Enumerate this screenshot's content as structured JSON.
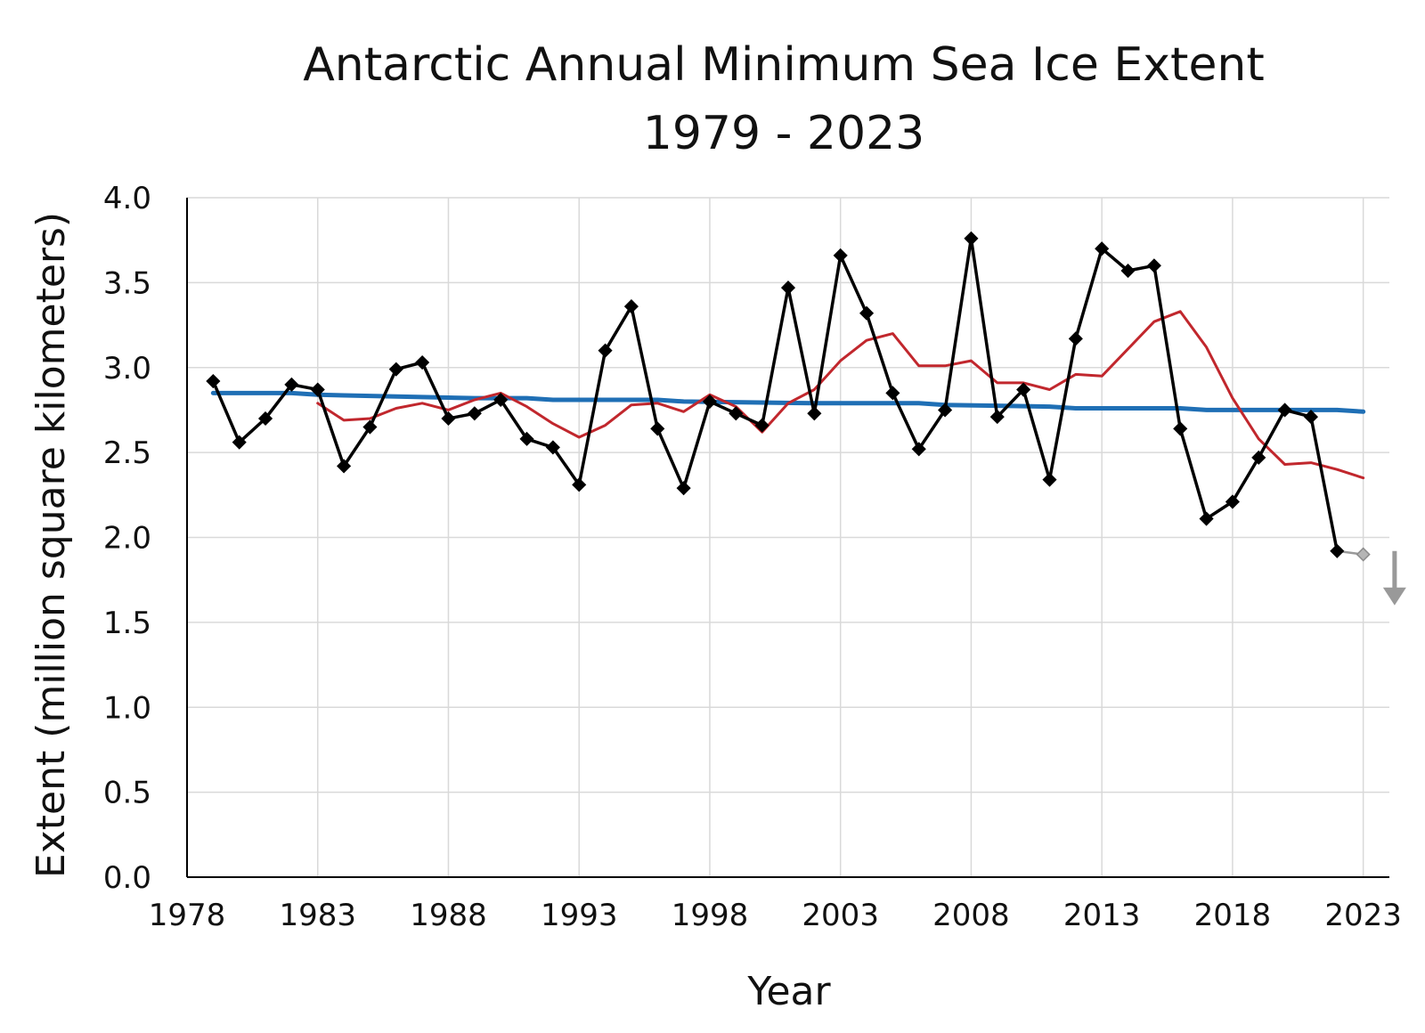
{
  "chart_data": {
    "type": "line",
    "title_line1": "Antarctic Annual Minimum Sea Ice Extent",
    "title_line2": "1979 - 2023",
    "xlabel": "Year",
    "ylabel": "Extent (million square kilometers)",
    "xlim": [
      1978,
      2024
    ],
    "ylim": [
      0,
      4.0
    ],
    "x_ticks": [
      1978,
      1983,
      1988,
      1993,
      1998,
      2003,
      2008,
      2013,
      2018,
      2023
    ],
    "y_ticks": [
      "0.0",
      "0.5",
      "1.0",
      "1.5",
      "2.0",
      "2.5",
      "3.0",
      "3.5",
      "4.0"
    ],
    "grid": true,
    "legend": "none",
    "series": [
      {
        "role": "annual-minimum",
        "color": "#000000",
        "marker": "diamond",
        "x": [
          1979,
          1980,
          1981,
          1982,
          1983,
          1984,
          1985,
          1986,
          1987,
          1988,
          1989,
          1990,
          1991,
          1992,
          1993,
          1994,
          1995,
          1996,
          1997,
          1998,
          1999,
          2000,
          2001,
          2002,
          2003,
          2004,
          2005,
          2006,
          2007,
          2008,
          2009,
          2010,
          2011,
          2012,
          2013,
          2014,
          2015,
          2016,
          2017,
          2018,
          2019,
          2020,
          2021,
          2022
        ],
        "values": [
          2.92,
          2.56,
          2.7,
          2.9,
          2.87,
          2.42,
          2.65,
          2.99,
          3.03,
          2.7,
          2.73,
          2.81,
          2.58,
          2.53,
          2.31,
          3.1,
          3.36,
          2.64,
          2.29,
          2.8,
          2.73,
          2.66,
          3.47,
          2.73,
          3.66,
          3.32,
          2.85,
          2.52,
          2.75,
          3.76,
          2.71,
          2.87,
          2.34,
          3.17,
          3.7,
          3.57,
          3.6,
          2.64,
          2.11,
          2.21,
          2.47,
          2.75,
          2.71,
          1.92
        ]
      },
      {
        "role": "preliminary-2023",
        "color": "#999999",
        "marker": "diamond",
        "x": [
          2022,
          2023
        ],
        "values": [
          1.92,
          1.9
        ]
      },
      {
        "role": "trend",
        "color": "#1f6fb5",
        "x": [
          1979,
          1982,
          1983,
          1989,
          1990,
          1991,
          1992,
          1993,
          1996,
          1997,
          2002,
          2006,
          2007,
          2011,
          2012,
          2016,
          2017,
          2022,
          2023
        ],
        "values": [
          2.85,
          2.85,
          2.84,
          2.82,
          2.82,
          2.82,
          2.81,
          2.81,
          2.81,
          2.8,
          2.79,
          2.79,
          2.78,
          2.77,
          2.76,
          2.76,
          2.75,
          2.75,
          2.74
        ]
      },
      {
        "role": "five-year-average",
        "color": "#c1272d",
        "x": [
          1983,
          1984,
          1985,
          1986,
          1987,
          1988,
          1989,
          1990,
          1991,
          1992,
          1993,
          1994,
          1995,
          1996,
          1997,
          1998,
          1999,
          2000,
          2001,
          2002,
          2003,
          2004,
          2005,
          2006,
          2007,
          2008,
          2009,
          2010,
          2011,
          2012,
          2013,
          2014,
          2015,
          2016,
          2017,
          2018,
          2019,
          2020,
          2021,
          2022,
          2023
        ],
        "values": [
          2.79,
          2.69,
          2.7,
          2.76,
          2.79,
          2.75,
          2.81,
          2.85,
          2.77,
          2.67,
          2.59,
          2.66,
          2.78,
          2.79,
          2.74,
          2.84,
          2.77,
          2.62,
          2.79,
          2.87,
          3.04,
          3.16,
          3.2,
          3.01,
          3.01,
          3.04,
          2.91,
          2.91,
          2.87,
          2.96,
          2.95,
          3.11,
          3.27,
          3.33,
          3.12,
          2.82,
          2.58,
          2.43,
          2.44,
          2.4,
          2.35
        ]
      }
    ],
    "annotations": [
      {
        "type": "down-arrow",
        "color": "#999999",
        "x": 2024.2,
        "from": 1.92,
        "to": 1.6
      }
    ]
  }
}
